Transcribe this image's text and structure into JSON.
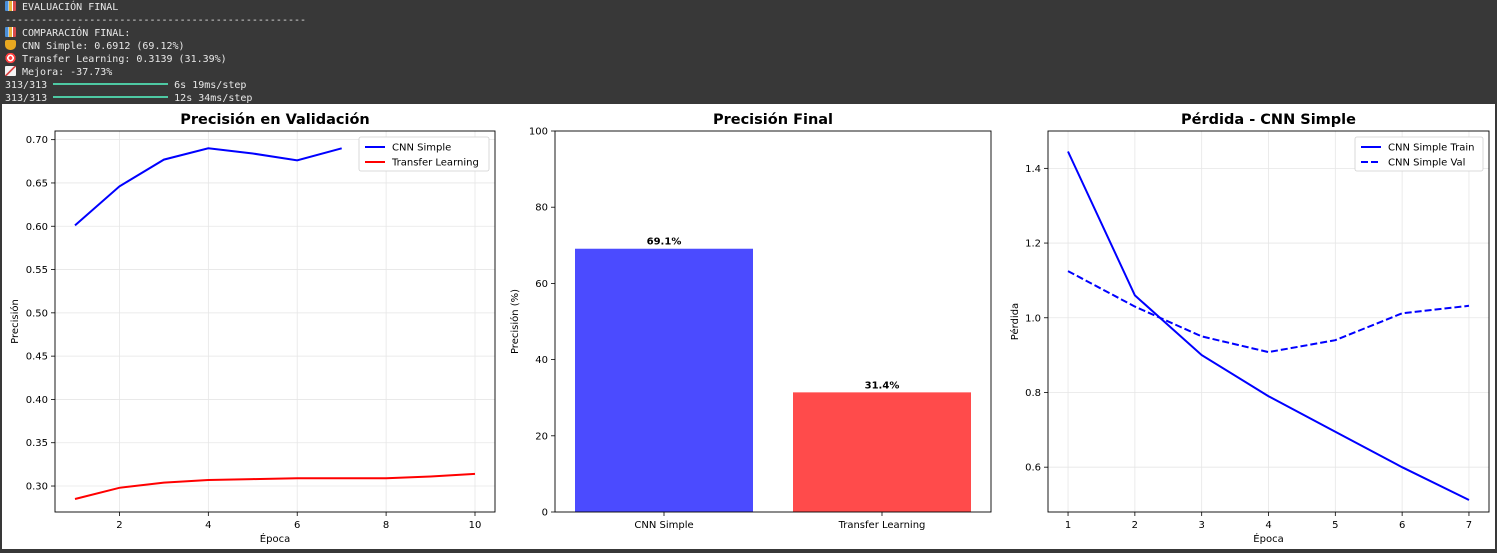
{
  "console": {
    "header_title": "EVALUACIÓN FINAL",
    "separator": "--------------------------------------------------",
    "comparison_title": "COMPARACIÓN FINAL:",
    "cnn_line": "CNN Simple: 0.6912 (69.12%)",
    "tl_line": "Transfer Learning: 0.3139 (31.39%)",
    "improvement_line": "Mejora: -37.73%",
    "progress": [
      {
        "count": "313/313",
        "timing": "6s 19ms/step",
        "fraction": 1.0
      },
      {
        "count": "313/313",
        "timing": "12s 34ms/step",
        "fraction": 1.0
      }
    ],
    "icons": {
      "header": "bar-chart-icon",
      "comparison": "bar-chart-icon",
      "cnn": "trophy-icon",
      "tl": "target-icon",
      "improvement": "trend-chart-icon"
    }
  },
  "chart_data": [
    {
      "type": "line",
      "title": "Precisión en Validación",
      "xlabel": "Época",
      "ylabel": "Precisión",
      "xlim": [
        0.55,
        10.45
      ],
      "ylim": [
        0.27,
        0.71
      ],
      "xticks": [
        2,
        4,
        6,
        8,
        10
      ],
      "yticks": [
        0.3,
        0.35,
        0.4,
        0.45,
        0.5,
        0.55,
        0.6,
        0.65,
        0.7
      ],
      "grid": true,
      "legend": "top-right",
      "series": [
        {
          "name": "CNN Simple",
          "color": "#0000ff",
          "dash": "solid",
          "x": [
            1,
            2,
            3,
            4,
            5,
            6,
            7
          ],
          "values": [
            0.601,
            0.646,
            0.677,
            0.69,
            0.684,
            0.676,
            0.69
          ]
        },
        {
          "name": "Transfer Learning",
          "color": "#ff0000",
          "dash": "solid",
          "x": [
            1,
            2,
            3,
            4,
            5,
            6,
            7,
            8,
            9,
            10
          ],
          "values": [
            0.285,
            0.298,
            0.304,
            0.307,
            0.308,
            0.309,
            0.309,
            0.309,
            0.311,
            0.314
          ]
        }
      ]
    },
    {
      "type": "bar",
      "title": "Precisión Final",
      "xlabel": "",
      "ylabel": "Precisión (%)",
      "ylim": [
        0,
        100
      ],
      "yticks": [
        0,
        20,
        40,
        60,
        80,
        100
      ],
      "categories": [
        "CNN Simple",
        "Transfer Learning"
      ],
      "values": [
        69.1,
        31.4
      ],
      "value_labels": [
        "69.1%",
        "31.4%"
      ],
      "colors": [
        "#4b4bff",
        "#ff4b4b"
      ]
    },
    {
      "type": "line",
      "title": "Pérdida - CNN Simple",
      "xlabel": "Época",
      "ylabel": "Pérdida",
      "xlim": [
        0.7,
        7.3
      ],
      "ylim": [
        0.48,
        1.5
      ],
      "xticks": [
        1,
        2,
        3,
        4,
        5,
        6,
        7
      ],
      "yticks": [
        0.6,
        0.8,
        1.0,
        1.2,
        1.4
      ],
      "grid": true,
      "legend": "top-right",
      "series": [
        {
          "name": "CNN Simple Train",
          "color": "#0000ff",
          "dash": "solid",
          "x": [
            1,
            2,
            3,
            4,
            5,
            6,
            7
          ],
          "values": [
            1.445,
            1.06,
            0.9,
            0.79,
            0.695,
            0.6,
            0.512
          ]
        },
        {
          "name": "CNN Simple Val",
          "color": "#0000ff",
          "dash": "dashed",
          "x": [
            1,
            2,
            3,
            4,
            5,
            6,
            7
          ],
          "values": [
            1.125,
            1.03,
            0.95,
            0.908,
            0.94,
            1.012,
            1.032
          ]
        }
      ]
    }
  ]
}
